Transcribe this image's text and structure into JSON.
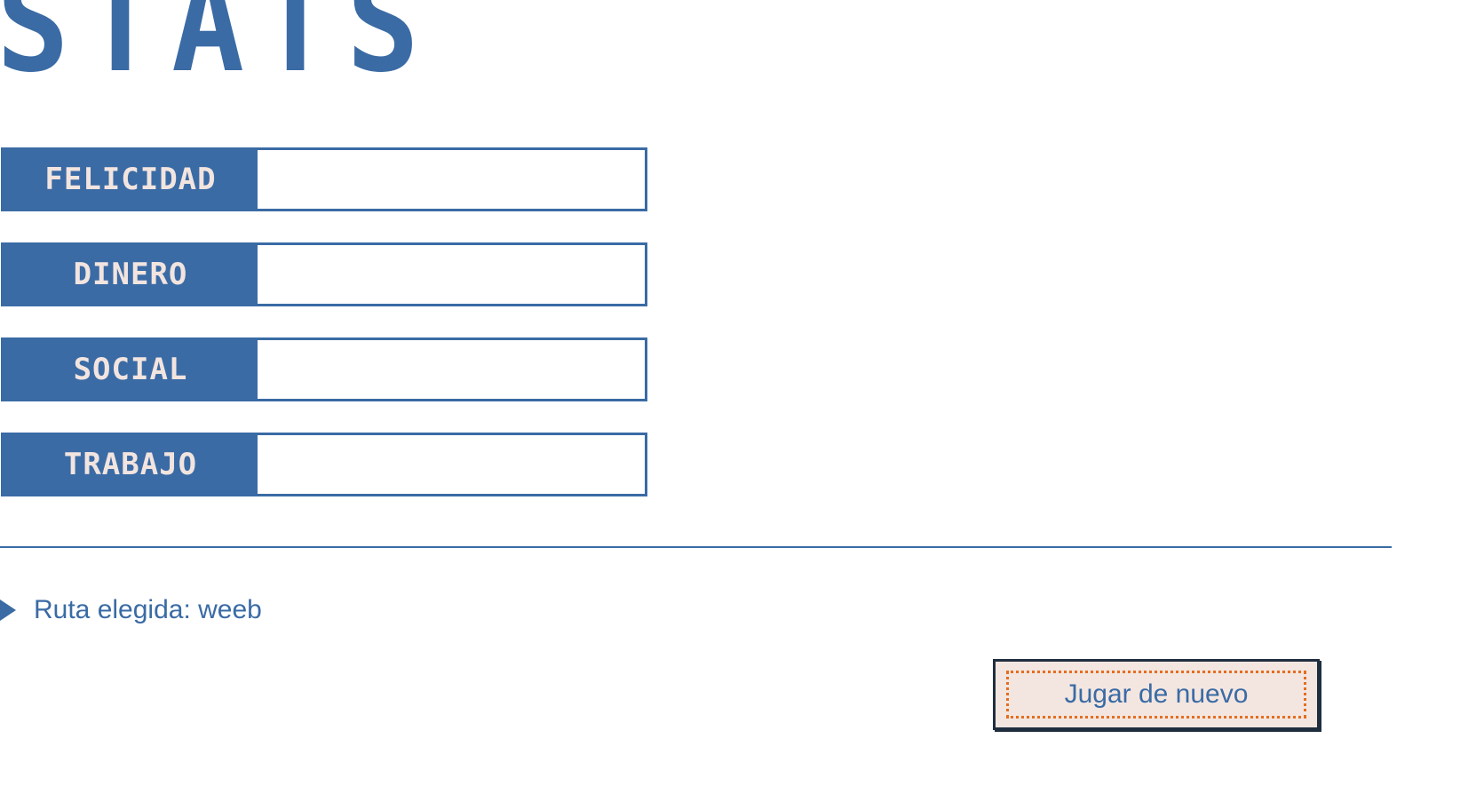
{
  "title": "STATS",
  "stats": [
    {
      "label": "FELICIDAD",
      "value": 0
    },
    {
      "label": "DINERO",
      "value": 0
    },
    {
      "label": "SOCIAL",
      "value": 0
    },
    {
      "label": "TRABAJO",
      "value": 0
    }
  ],
  "route": {
    "text": "Ruta elegida: weeb"
  },
  "play_again": {
    "label": "Jugar de nuevo"
  },
  "colors": {
    "primary": "#3a6ba5",
    "label_text": "#f2e4df",
    "button_bg": "#f3e6e0",
    "focus": "#e56d20"
  }
}
